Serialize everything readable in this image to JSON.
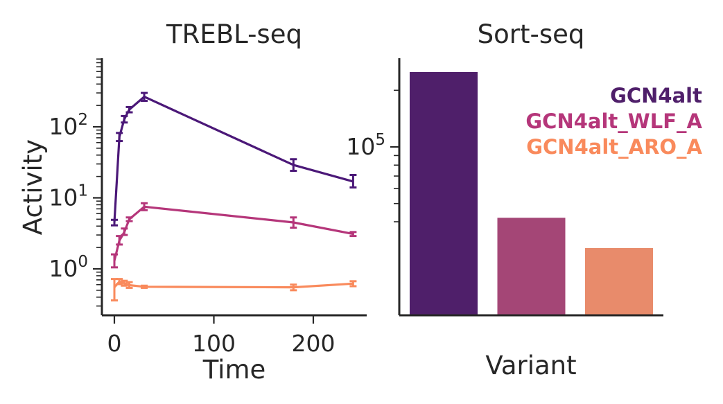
{
  "chart_data": [
    {
      "type": "line",
      "title": "TREBL-seq",
      "xlabel": "Time",
      "ylabel": "Activity",
      "xlim": [
        -10,
        250
      ],
      "ylim": [
        0.25,
        900
      ],
      "yscale": "log",
      "x_ticks": [
        "0",
        "100",
        "200"
      ],
      "y_ticks": [
        {
          "base": "10",
          "exp": "2"
        },
        {
          "base": "10",
          "exp": "1"
        },
        {
          "base": "10",
          "exp": "0"
        }
      ],
      "grid": false,
      "series": [
        {
          "color": "#4b1878",
          "points": [
            {
              "x": 0,
              "y": 4.5,
              "lo": 4.1,
              "hi": 4.9
            },
            {
              "x": 5,
              "y": 72,
              "lo": 63,
              "hi": 82
            },
            {
              "x": 10,
              "y": 128,
              "lo": 115,
              "hi": 142
            },
            {
              "x": 15,
              "y": 175,
              "lo": 160,
              "hi": 190
            },
            {
              "x": 30,
              "y": 265,
              "lo": 232,
              "hi": 300
            },
            {
              "x": 180,
              "y": 29,
              "lo": 24,
              "hi": 35
            },
            {
              "x": 240,
              "y": 17,
              "lo": 14,
              "hi": 21
            }
          ]
        },
        {
          "color": "#b5367a",
          "points": [
            {
              "x": 0,
              "y": 1.3,
              "lo": 1.05,
              "hi": 1.6
            },
            {
              "x": 5,
              "y": 2.5,
              "lo": 2.2,
              "hi": 2.9
            },
            {
              "x": 10,
              "y": 3.3,
              "lo": 3.0,
              "hi": 3.7
            },
            {
              "x": 15,
              "y": 5.0,
              "lo": 4.7,
              "hi": 5.3
            },
            {
              "x": 30,
              "y": 7.5,
              "lo": 6.7,
              "hi": 8.4
            },
            {
              "x": 180,
              "y": 4.5,
              "lo": 3.8,
              "hi": 5.3
            },
            {
              "x": 240,
              "y": 3.1,
              "lo": 2.9,
              "hi": 3.3
            }
          ]
        },
        {
          "color": "#f98a5c",
          "points": [
            {
              "x": 0,
              "y": 0.55,
              "lo": 0.36,
              "hi": 0.72
            },
            {
              "x": 5,
              "y": 0.66,
              "lo": 0.61,
              "hi": 0.72
            },
            {
              "x": 10,
              "y": 0.63,
              "lo": 0.58,
              "hi": 0.68
            },
            {
              "x": 15,
              "y": 0.59,
              "lo": 0.54,
              "hi": 0.65
            },
            {
              "x": 30,
              "y": 0.56,
              "lo": 0.54,
              "hi": 0.58
            },
            {
              "x": 180,
              "y": 0.55,
              "lo": 0.5,
              "hi": 0.6
            },
            {
              "x": 240,
              "y": 0.62,
              "lo": 0.57,
              "hi": 0.67
            }
          ]
        }
      ]
    },
    {
      "type": "bar",
      "title": "Sort-seq",
      "xlabel": "Variant",
      "ylabel": "",
      "yscale": "log",
      "ylim": [
        25000,
        300000
      ],
      "y_ticks": [
        {
          "base": "10",
          "exp": "5"
        }
      ],
      "grid": false,
      "legend_placement": "top-right",
      "categories": [
        "GCN4alt",
        "GCN4alt_WLF_A",
        "GCN4alt_ARO_A"
      ],
      "values": [
        250000,
        42000,
        29000
      ],
      "colors": [
        "#4f1f6a",
        "#a44676",
        "#e88b6b"
      ],
      "legend": [
        {
          "label": "GCN4alt",
          "color": "#4f1f6a"
        },
        {
          "label": "GCN4alt_WLF_A",
          "color": "#b5367a"
        },
        {
          "label": "GCN4alt_ARO_A",
          "color": "#f98a5c"
        }
      ]
    }
  ]
}
